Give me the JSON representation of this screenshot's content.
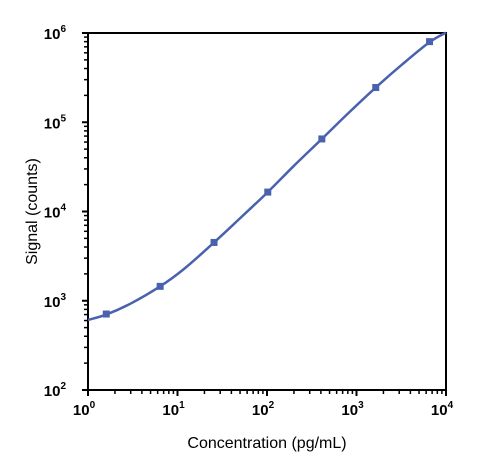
{
  "chart_data": {
    "type": "scatter",
    "title": "",
    "xlabel": "Concentration (pg/mL)",
    "ylabel": "Signal (counts)",
    "x_scale": "log",
    "y_scale": "log",
    "xlim": [
      1,
      10000
    ],
    "ylim": [
      100,
      1000000
    ],
    "grid": false,
    "legend": "none",
    "x_ticks": [
      {
        "base": "10",
        "exp": "0"
      },
      {
        "base": "10",
        "exp": "1"
      },
      {
        "base": "10",
        "exp": "2"
      },
      {
        "base": "10",
        "exp": "3"
      },
      {
        "base": "10",
        "exp": "4"
      }
    ],
    "y_ticks": [
      {
        "base": "10",
        "exp": "2"
      },
      {
        "base": "10",
        "exp": "3"
      },
      {
        "base": "10",
        "exp": "4"
      },
      {
        "base": "10",
        "exp": "5"
      },
      {
        "base": "10",
        "exp": "6"
      }
    ],
    "series": [
      {
        "points": [
          {
            "x": 1.6,
            "y": 710
          },
          {
            "x": 6.4,
            "y": 1450
          },
          {
            "x": 25.6,
            "y": 4500
          },
          {
            "x": 102,
            "y": 16500
          },
          {
            "x": 410,
            "y": 65000
          },
          {
            "x": 1640,
            "y": 245000
          },
          {
            "x": 6550,
            "y": 800000
          }
        ],
        "fit_curve": [
          {
            "x": 1,
            "y": 610
          },
          {
            "x": 1.6,
            "y": 700
          },
          {
            "x": 3,
            "y": 930
          },
          {
            "x": 6.4,
            "y": 1450
          },
          {
            "x": 12,
            "y": 2300
          },
          {
            "x": 25.6,
            "y": 4500
          },
          {
            "x": 50,
            "y": 8400
          },
          {
            "x": 102,
            "y": 16500
          },
          {
            "x": 200,
            "y": 32500
          },
          {
            "x": 410,
            "y": 65000
          },
          {
            "x": 800,
            "y": 125000
          },
          {
            "x": 1640,
            "y": 245000
          },
          {
            "x": 3200,
            "y": 440000
          },
          {
            "x": 6550,
            "y": 790000
          },
          {
            "x": 10000,
            "y": 1010000
          }
        ]
      }
    ],
    "colors": {
      "series": "#4a62ad",
      "axis": "#000000"
    }
  }
}
